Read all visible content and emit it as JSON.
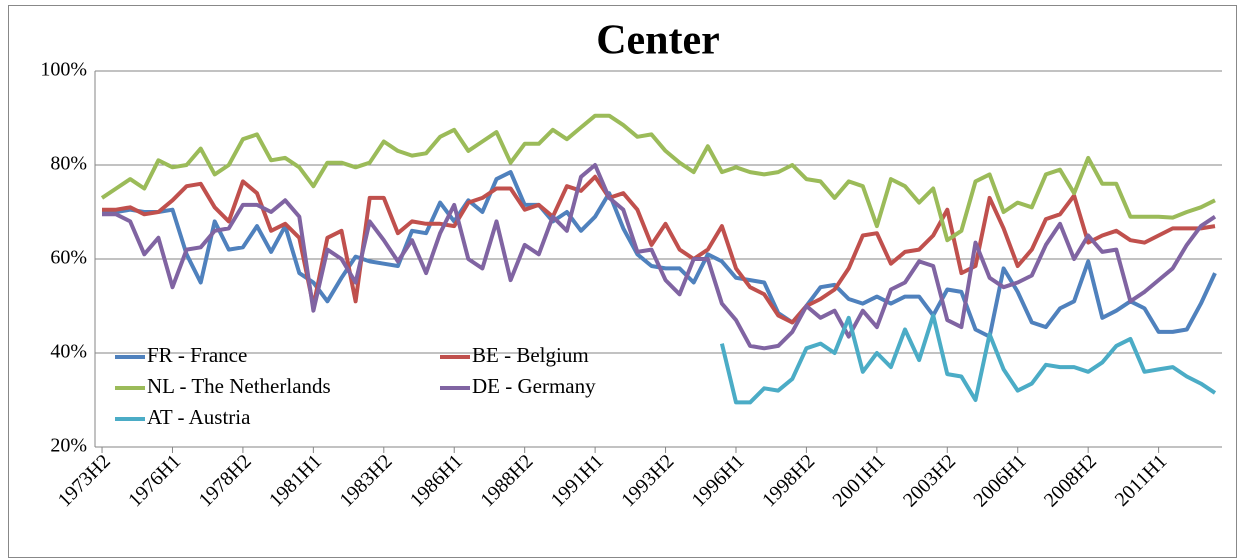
{
  "chart_data": {
    "type": "line",
    "title": "Center",
    "categories": [
      "1973H2",
      null,
      null,
      null,
      null,
      "1976H1",
      null,
      null,
      null,
      null,
      "1978H2",
      null,
      null,
      null,
      null,
      "1981H1",
      null,
      null,
      null,
      null,
      "1983H2",
      null,
      null,
      null,
      null,
      "1986H1",
      null,
      null,
      null,
      null,
      "1988H2",
      null,
      null,
      null,
      null,
      "1991H1",
      null,
      null,
      null,
      null,
      "1993H2",
      null,
      null,
      null,
      null,
      "1996H1",
      null,
      null,
      null,
      null,
      "1998H2",
      null,
      null,
      null,
      null,
      "2001H1",
      null,
      null,
      null,
      null,
      "2003H2",
      null,
      null,
      null,
      null,
      "2006H1",
      null,
      null,
      null,
      null,
      "2008H2",
      null,
      null,
      null,
      null,
      "2011H1",
      null,
      null,
      null,
      null
    ],
    "ylim": [
      20,
      100
    ],
    "yticks": [
      {
        "value": 20,
        "label": "20%"
      },
      {
        "value": 40,
        "label": "40%"
      },
      {
        "value": 60,
        "label": "60%"
      },
      {
        "value": 80,
        "label": "80%"
      },
      {
        "value": 100,
        "label": "100%"
      }
    ],
    "grid": true,
    "legend": "lower left",
    "series": [
      {
        "name": "FR - France",
        "color": "#4f81bd",
        "values": [
          70,
          70,
          70.5,
          70,
          70,
          70.5,
          61,
          55,
          68,
          62,
          62.5,
          67,
          61.5,
          67,
          57,
          55,
          51,
          56,
          60.5,
          59.5,
          59,
          58.5,
          66,
          65.5,
          72,
          68,
          72.5,
          70,
          77,
          78.5,
          71.5,
          71.5,
          68,
          70,
          66,
          69,
          74,
          66.5,
          61,
          58.5,
          58,
          58,
          55,
          61,
          59.5,
          56,
          55.5,
          55,
          48.5,
          46.5,
          50,
          54,
          54.5,
          51.5,
          50.5,
          52,
          50.5,
          52,
          52,
          48,
          53.5,
          53,
          45,
          43.5,
          58,
          53,
          46.5,
          45.5,
          49.5,
          51,
          59.5,
          47.5,
          49,
          51,
          49.5,
          44.5,
          44.5,
          45,
          50.5,
          57
        ]
      },
      {
        "name": "BE - Belgium",
        "color": "#c0504d",
        "values": [
          70.5,
          70.5,
          71,
          69.5,
          70,
          72.5,
          75.5,
          76,
          71,
          68,
          76.5,
          74,
          66,
          67.5,
          64.5,
          50,
          64.5,
          66,
          51,
          73,
          73,
          65.5,
          68,
          67.5,
          67.5,
          67,
          72,
          73,
          75,
          75,
          70.5,
          71.5,
          69,
          75.5,
          74.5,
          77.5,
          73,
          74,
          70.5,
          63,
          67.5,
          62,
          60,
          62,
          67,
          58,
          54,
          52.5,
          48,
          46.5,
          50,
          51.5,
          53.5,
          58,
          65,
          65.5,
          59,
          61.5,
          62,
          65,
          70.5,
          57,
          58.5,
          73,
          66.5,
          58.5,
          62,
          68.5,
          69.5,
          73.5,
          63.5,
          65,
          66,
          64,
          63.5,
          65,
          66.5,
          66.5,
          66.5,
          67
        ]
      },
      {
        "name": "NL - The Netherlands",
        "color": "#9bbb59",
        "values": [
          73,
          75,
          77,
          75,
          81,
          79.5,
          80,
          83.5,
          78,
          80,
          85.5,
          86.5,
          81,
          81.5,
          79.5,
          75.5,
          80.5,
          80.5,
          79.5,
          80.5,
          85,
          83,
          82,
          82.5,
          86,
          87.5,
          83,
          85,
          87,
          80.5,
          84.5,
          84.5,
          87.5,
          85.5,
          88,
          90.5,
          90.5,
          88.5,
          86,
          86.5,
          83,
          80.5,
          78.5,
          84,
          78.5,
          79.5,
          78.5,
          78,
          78.5,
          80,
          77,
          76.5,
          73,
          76.5,
          75.5,
          67,
          77,
          75.5,
          72,
          75,
          64,
          66,
          76.5,
          78,
          70,
          72,
          71,
          78,
          79,
          74,
          81.5,
          76,
          76,
          69,
          69,
          69,
          68.8,
          70,
          71,
          72.5
        ]
      },
      {
        "name": "DE - Germany",
        "color": "#8064a2",
        "values": [
          69.5,
          69.5,
          68,
          61,
          64.5,
          54,
          62,
          62.5,
          66,
          66.5,
          71.5,
          71.5,
          70,
          72.5,
          69,
          49,
          62,
          60,
          55,
          68,
          64,
          59.5,
          64,
          57,
          65.5,
          71.5,
          60,
          58,
          68,
          55.5,
          63,
          61,
          69,
          66,
          77.5,
          80,
          73,
          70.5,
          61.5,
          62,
          55.5,
          52.5,
          60,
          60,
          50.5,
          47,
          41.5,
          41,
          41.5,
          44.5,
          50,
          47.5,
          49,
          43.5,
          49,
          45.5,
          53.5,
          55,
          59.5,
          58.5,
          47,
          45.5,
          63.5,
          56,
          54,
          55,
          56.5,
          63,
          67.5,
          60,
          65,
          61.5,
          62,
          51,
          53,
          55.5,
          58,
          63,
          67,
          69
        ]
      },
      {
        "name": "AT - Austria",
        "color": "#4bacc6",
        "values": [
          null,
          null,
          null,
          null,
          null,
          null,
          null,
          null,
          null,
          null,
          null,
          null,
          null,
          null,
          null,
          null,
          null,
          null,
          null,
          null,
          null,
          null,
          null,
          null,
          null,
          null,
          null,
          null,
          null,
          null,
          null,
          null,
          null,
          null,
          null,
          null,
          null,
          null,
          null,
          null,
          null,
          null,
          null,
          null,
          42,
          29.5,
          29.5,
          32.5,
          32,
          34.5,
          41,
          42,
          40,
          47.5,
          36,
          40,
          37,
          45,
          38.5,
          48,
          35.5,
          35,
          30,
          44,
          36.5,
          32,
          33.5,
          37.5,
          37,
          37,
          36,
          38,
          41.5,
          43,
          36,
          36.5,
          37,
          35,
          33.5,
          31.5
        ]
      }
    ]
  }
}
